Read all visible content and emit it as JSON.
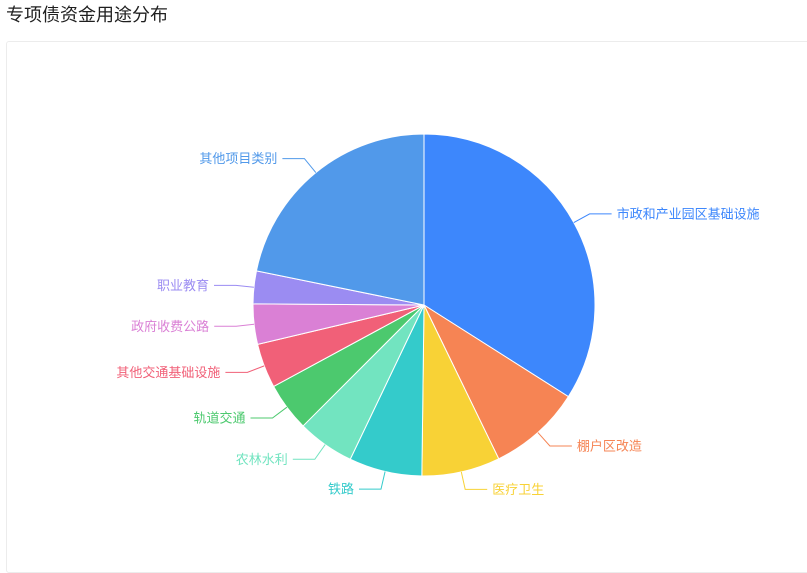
{
  "page": {
    "title": "专项债资金用途分布"
  },
  "chart_data": {
    "type": "pie",
    "title": "",
    "legend": "none",
    "slices": [
      {
        "label": "市政和产业园区基础设施",
        "value": 34.0,
        "color": "#3d87fc"
      },
      {
        "label": "棚户区改造",
        "value": 8.8,
        "color": "#f68454"
      },
      {
        "label": "医疗卫生",
        "value": 7.4,
        "color": "#f8d236"
      },
      {
        "label": "铁路",
        "value": 6.9,
        "color": "#34cbcb"
      },
      {
        "label": "农林水利",
        "value": 5.4,
        "color": "#72e4c0"
      },
      {
        "label": "轨道交通",
        "value": 4.6,
        "color": "#4cc96e"
      },
      {
        "label": "其他交通基础设施",
        "value": 4.2,
        "color": "#f16078"
      },
      {
        "label": "政府收费公路",
        "value": 3.8,
        "color": "#da80d5"
      },
      {
        "label": "职业教育",
        "value": 3.1,
        "color": "#9b8cf2"
      },
      {
        "label": "其他项目类别",
        "value": 21.8,
        "color": "#5199ea"
      }
    ]
  }
}
